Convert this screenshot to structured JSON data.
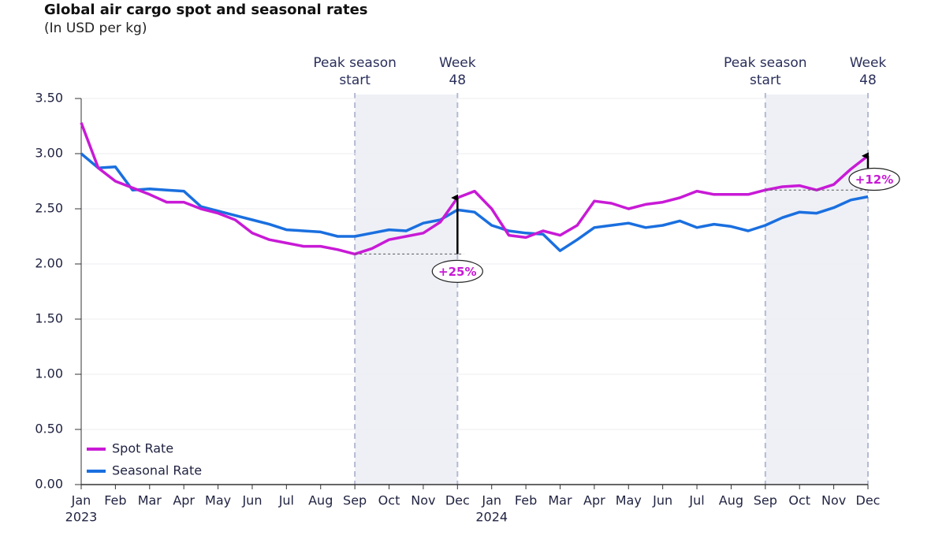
{
  "chart_data": {
    "type": "line",
    "title": "Global air cargo spot and seasonal rates",
    "subtitle": "(In USD per kg)",
    "categories": [
      "Jan",
      null,
      "Feb",
      null,
      "Mar",
      null,
      "Apr",
      null,
      "May",
      null,
      "Jun",
      null,
      "Jul",
      null,
      "Aug",
      null,
      "Sep",
      null,
      "Oct",
      null,
      "Nov",
      null,
      "Dec",
      null,
      "Jan",
      null,
      "Feb",
      null,
      "Mar",
      null,
      "Apr",
      null,
      "May",
      null,
      "Jun",
      null,
      "Jul",
      null,
      "Aug",
      null,
      "Sep",
      null,
      "Oct",
      null,
      "Nov",
      null,
      "Dec"
    ],
    "year_labels": [
      "2023",
      "2024"
    ],
    "series": [
      {
        "name": "Spot Rate",
        "color": "#c81ad6",
        "values": [
          3.28,
          2.87,
          2.75,
          2.69,
          2.63,
          2.56,
          2.56,
          2.5,
          2.46,
          2.4,
          2.28,
          2.22,
          2.19,
          2.16,
          2.16,
          2.13,
          2.09,
          2.14,
          2.22,
          2.25,
          2.28,
          2.38,
          2.6,
          2.66,
          2.5,
          2.26,
          2.24,
          2.3,
          2.26,
          2.35,
          2.57,
          2.55,
          2.5,
          2.54,
          2.56,
          2.6,
          2.66,
          2.63,
          2.63,
          2.63,
          2.67,
          2.7,
          2.71,
          2.67,
          2.72,
          2.86,
          2.98
        ]
      },
      {
        "name": "Seasonal Rate",
        "color": "#1a6fdf",
        "values": [
          3.0,
          2.87,
          2.88,
          2.67,
          2.68,
          2.67,
          2.66,
          2.52,
          2.48,
          2.44,
          2.4,
          2.36,
          2.31,
          2.3,
          2.29,
          2.25,
          2.25,
          2.28,
          2.31,
          2.3,
          2.37,
          2.4,
          2.49,
          2.47,
          2.35,
          2.3,
          2.28,
          2.27,
          2.12,
          2.22,
          2.33,
          2.35,
          2.37,
          2.33,
          2.35,
          2.39,
          2.33,
          2.36,
          2.34,
          2.3,
          2.35,
          2.42,
          2.47,
          2.46,
          2.51,
          2.58,
          2.61
        ]
      }
    ],
    "ylim": [
      0,
      3.5
    ],
    "yticks": [
      {
        "value": 0,
        "label": "0.00"
      },
      {
        "value": 0.5,
        "label": "0.50"
      },
      {
        "value": 1,
        "label": "1.00"
      },
      {
        "value": 1.5,
        "label": "1.50"
      },
      {
        "value": 2,
        "label": "2.00"
      },
      {
        "value": 2.5,
        "label": "2.50"
      },
      {
        "value": 3,
        "label": "3.00"
      },
      {
        "value": 3.5,
        "label": "3.50"
      }
    ],
    "grid": true,
    "legend": "bottom-left",
    "shaded_regions": [
      {
        "start": 16,
        "end": 22,
        "start_label": [
          "Peak season",
          "start"
        ],
        "end_label": [
          "Week",
          "48"
        ]
      },
      {
        "start": 40,
        "end": 46,
        "start_label": [
          "Peak season",
          "start"
        ],
        "end_label": [
          "Week",
          "48"
        ]
      }
    ],
    "annotations": [
      {
        "label": "+25%",
        "from_index": 16,
        "index": 22,
        "from": 2.09,
        "to": 2.6
      },
      {
        "label": "+12%",
        "from_index": 40,
        "index": 46,
        "from": 2.67,
        "to": 2.98
      }
    ]
  }
}
